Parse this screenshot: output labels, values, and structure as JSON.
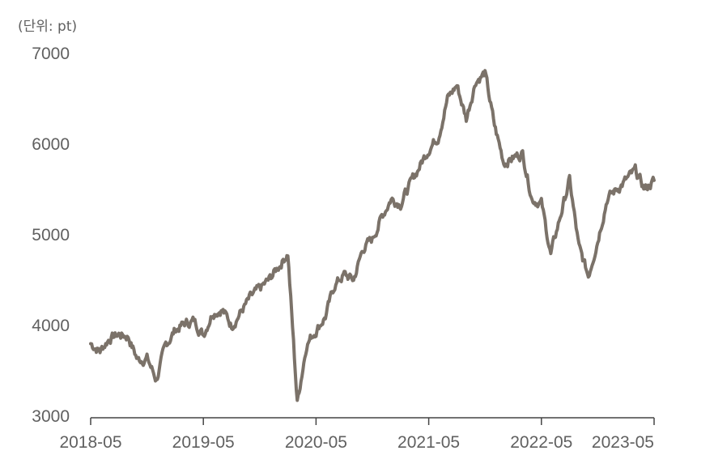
{
  "chart_data": {
    "type": "line",
    "unit_label": "(단위: pt)",
    "title": "",
    "xlabel": "",
    "ylabel": "",
    "ylim": [
      3000,
      7000
    ],
    "yticks": [
      3000,
      4000,
      5000,
      6000,
      7000
    ],
    "xticks": [
      "2018-05",
      "2019-05",
      "2020-05",
      "2021-05",
      "2022-05",
      "2023-05"
    ],
    "xlim": [
      "2018-05",
      "2023-05"
    ],
    "grid": false,
    "line_color": "#7b7269",
    "series": [
      {
        "x": [
          "2018-05",
          "2018-06",
          "2018-07",
          "2018-08",
          "2018-09",
          "2018-10",
          "2018-11",
          "2018-12",
          "2019-01",
          "2019-02",
          "2019-03",
          "2019-04",
          "2019-05",
          "2019-06",
          "2019-07",
          "2019-08",
          "2019-09",
          "2019-10",
          "2019-11",
          "2019-12",
          "2020-01",
          "2020-02",
          "2020-03",
          "2020-04",
          "2020-05",
          "2020-06",
          "2020-07",
          "2020-08",
          "2020-09",
          "2020-10",
          "2020-11",
          "2020-12",
          "2021-01",
          "2021-02",
          "2021-03",
          "2021-04",
          "2021-05",
          "2021-06",
          "2021-07",
          "2021-08",
          "2021-09",
          "2021-10",
          "2021-11",
          "2021-12",
          "2022-01",
          "2022-02",
          "2022-03",
          "2022-04",
          "2022-05",
          "2022-06",
          "2022-07",
          "2022-08",
          "2022-09",
          "2022-10",
          "2022-11",
          "2022-12",
          "2023-01",
          "2023-02",
          "2023-03",
          "2023-04",
          "2023-05"
        ],
        "values": [
          3800,
          3720,
          3860,
          3900,
          3880,
          3620,
          3640,
          3400,
          3780,
          3950,
          4020,
          4050,
          3900,
          4150,
          4180,
          4000,
          4150,
          4300,
          4400,
          4500,
          4650,
          4800,
          3150,
          3800,
          3950,
          4100,
          4450,
          4560,
          4500,
          4850,
          4950,
          5200,
          5400,
          5350,
          5550,
          5750,
          5950,
          6080,
          6500,
          6650,
          6280,
          6700,
          6780,
          6200,
          5800,
          5850,
          5900,
          5400,
          5350,
          4780,
          5200,
          5600,
          4850,
          4550,
          4950,
          5400,
          5500,
          5600,
          5700,
          5500,
          5600
        ]
      }
    ]
  }
}
